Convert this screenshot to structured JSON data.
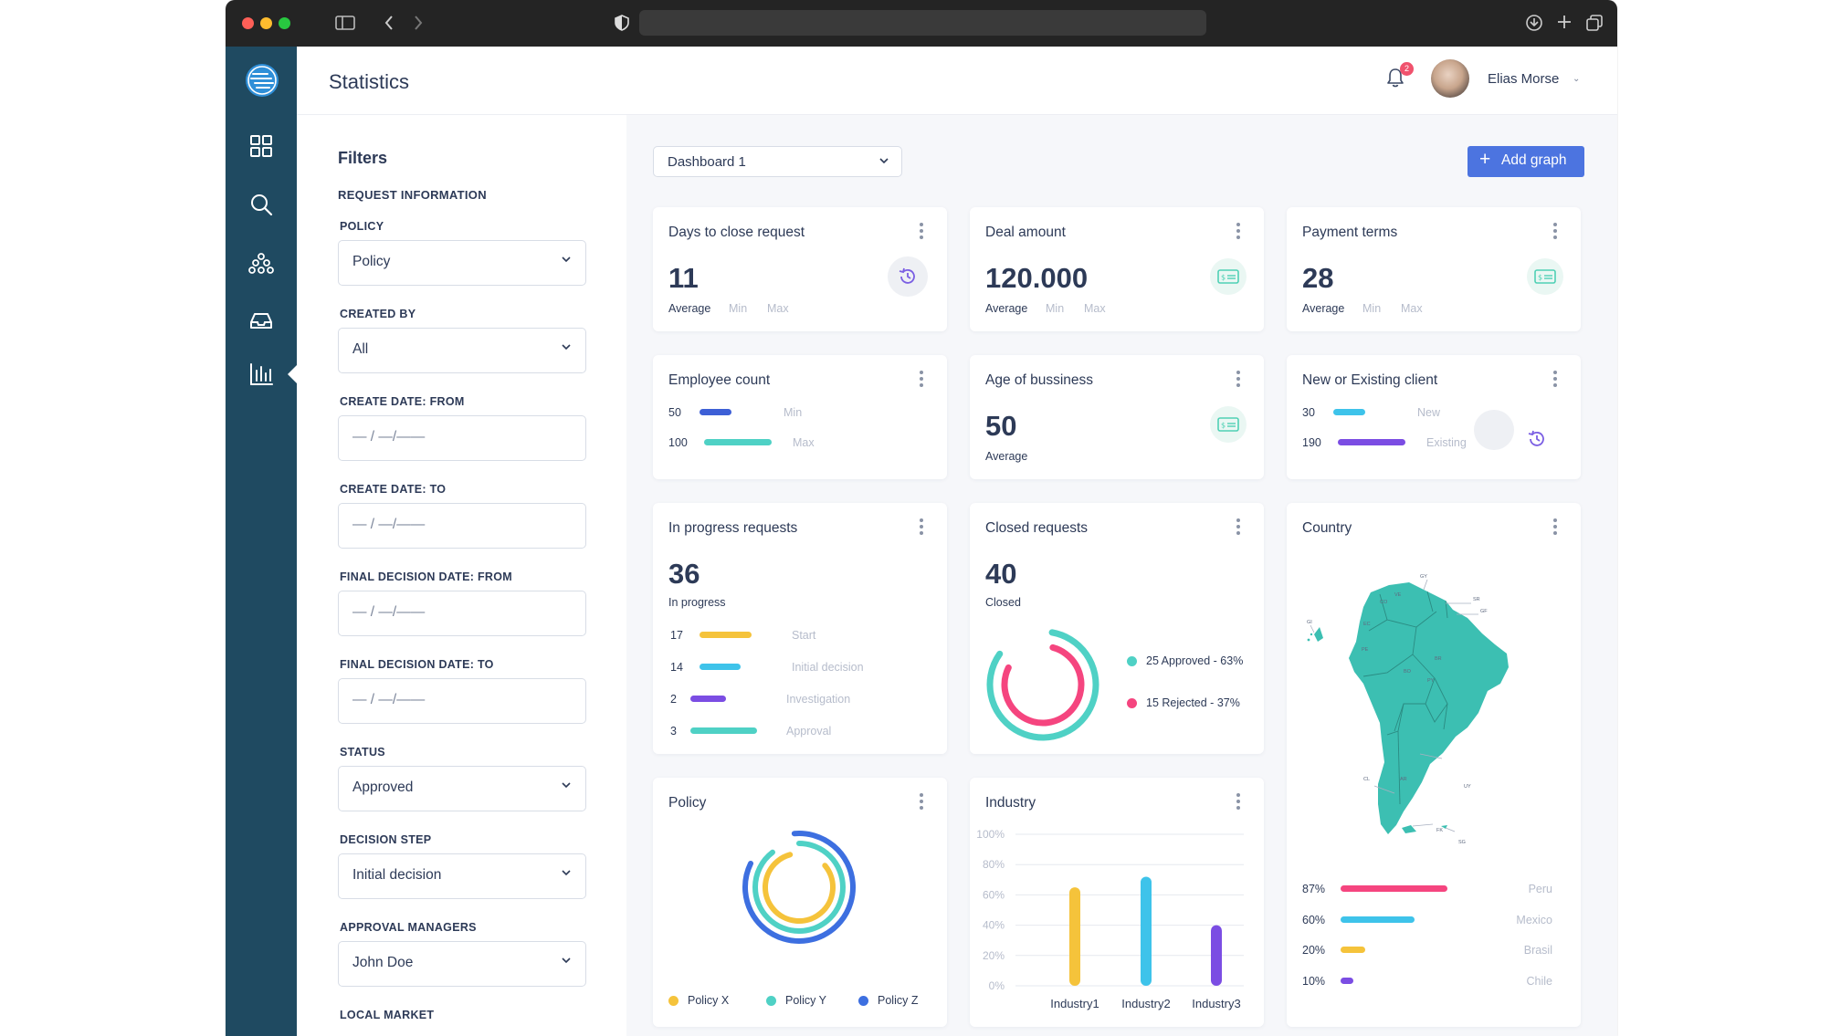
{
  "app": {
    "page_title": "Statistics",
    "user_name": "Elias Morse",
    "notification_count": "2"
  },
  "filters": {
    "title": "Filters",
    "section": "REQUEST INFORMATION",
    "fields": [
      {
        "label": "POLICY",
        "value": "Policy",
        "type": "select"
      },
      {
        "label": "CREATED BY",
        "value": "All",
        "type": "select"
      },
      {
        "label": "CREATE DATE: FROM",
        "value": "— / —/——",
        "type": "date"
      },
      {
        "label": "CREATE DATE: TO",
        "value": "— / —/——",
        "type": "date"
      },
      {
        "label": "FINAL DECISION DATE: FROM",
        "value": "— / —/——",
        "type": "date"
      },
      {
        "label": "FINAL DECISION DATE: TO",
        "value": "— / —/——",
        "type": "date"
      },
      {
        "label": "STATUS",
        "value": "Approved",
        "type": "select"
      },
      {
        "label": "DECISION STEP",
        "value": "Initial decision",
        "type": "select"
      },
      {
        "label": "APPROVAL MANAGERS",
        "value": "John Doe",
        "type": "select"
      },
      {
        "label": "LOCAL MARKET",
        "value": "",
        "type": "select"
      }
    ]
  },
  "toolbar": {
    "dashboard_select": "Dashboard 1",
    "add_graph": "Add graph"
  },
  "cards": {
    "days_close": {
      "title": "Days to close request",
      "value": "11",
      "l1": "Average",
      "l2": "Min",
      "l3": "Max"
    },
    "deal_amount": {
      "title": "Deal amount",
      "value": "120.000",
      "l1": "Average",
      "l2": "Min",
      "l3": "Max"
    },
    "payment_terms": {
      "title": "Payment terms",
      "value": "28",
      "l1": "Average",
      "l2": "Min",
      "l3": "Max"
    },
    "employee": {
      "title": "Employee count",
      "rows": [
        {
          "num": "50",
          "label": "Min",
          "fill": 0.45,
          "color": "#3d5fd6"
        },
        {
          "num": "100",
          "label": "Max",
          "fill": 1.0,
          "color": "#4fd1c5"
        }
      ]
    },
    "age": {
      "title": "Age of bussiness",
      "value": "50",
      "l1": "Average"
    },
    "client": {
      "title": "New or Existing client",
      "rows": [
        {
          "num": "30",
          "label": "New",
          "fill": 0.45,
          "color": "#3ec3ea"
        },
        {
          "num": "190",
          "label": "Existing",
          "fill": 1.0,
          "color": "#7b4de3"
        }
      ]
    },
    "in_progress": {
      "title": "In progress requests",
      "value": "36",
      "sub": "In progress",
      "rows": [
        {
          "num": "17",
          "label": "Start",
          "fill": 0.75,
          "color": "#f5c33b"
        },
        {
          "num": "14",
          "label": "Initial decision",
          "fill": 0.62,
          "color": "#3ec3ea"
        },
        {
          "num": "2",
          "label": "Investigation",
          "fill": 0.5,
          "color": "#7b4de3"
        },
        {
          "num": "3",
          "label": "Approval",
          "fill": 1.0,
          "color": "#4fd1c5"
        }
      ]
    },
    "closed": {
      "title": "Closed requests",
      "value": "40",
      "sub": "Closed",
      "legend": [
        {
          "label": "25 Approved - 63%",
          "color": "#4fd1c5"
        },
        {
          "label": "15 Rejected - 37%",
          "color": "#f5457f"
        }
      ],
      "approved_frac": 0.63,
      "rejected_frac": 0.37
    },
    "country": {
      "title": "Country",
      "rows": [
        {
          "pct": "87%",
          "label": "Peru",
          "fill": 0.87,
          "color": "#f5457f"
        },
        {
          "pct": "60%",
          "label": "Mexico",
          "fill": 0.6,
          "color": "#3ec3ea"
        },
        {
          "pct": "20%",
          "label": "Brasil",
          "fill": 0.2,
          "color": "#f5c33b"
        },
        {
          "pct": "10%",
          "label": "Chile",
          "fill": 0.1,
          "color": "#7b4de3"
        }
      ],
      "map_labels": [
        "GY",
        "SR",
        "GF",
        "VE",
        "CO",
        "GI",
        "EC",
        "PE",
        "BR",
        "BO",
        "PY",
        "CL",
        "AR",
        "UY",
        "FK",
        "SG"
      ]
    },
    "policy": {
      "title": "Policy",
      "legend": [
        {
          "label": "Policy X",
          "color": "#f5c33b"
        },
        {
          "label": "Policy Y",
          "color": "#4fd1c5"
        },
        {
          "label": "Policy Z",
          "color": "#3d6fe0"
        }
      ]
    },
    "industry": {
      "title": "Industry"
    }
  },
  "chart_data": {
    "type": "bar",
    "title": "Industry",
    "categories": [
      "Industry1",
      "Industry2",
      "Industry3"
    ],
    "values": [
      65,
      72,
      40
    ],
    "colors": [
      "#f5c33b",
      "#3ec3ea",
      "#7b4de3"
    ],
    "ylim": [
      0,
      100
    ],
    "yticks": [
      "100%",
      "80%",
      "60%",
      "40%",
      "20%",
      "0%"
    ],
    "grid": true
  }
}
